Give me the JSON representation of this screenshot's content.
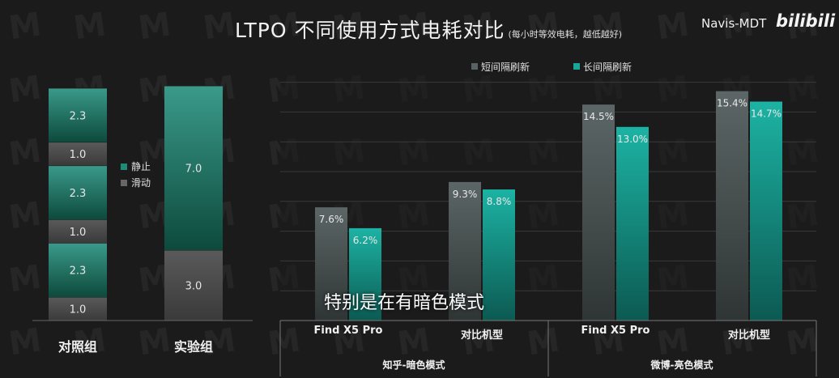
{
  "title": "LTPO 不同使用方式电耗对比",
  "title_note": "(每小时等效电耗，越低越好)",
  "brand": "Navis-MDT",
  "logo_text": "bilibili",
  "subtitle_overlay": "特别是在有暗色模式",
  "colors": {
    "background": "#1b1b1b",
    "static": "#1f8a78",
    "scroll": "#4a4a4a",
    "short_refresh": "#535c5c",
    "long_refresh": "#18a89a"
  },
  "chart_data": [
    {
      "type": "bar",
      "stacked": true,
      "categories": [
        "对照组",
        "实验组"
      ],
      "legend": [
        "静止",
        "滑动"
      ],
      "legend_placement": "between bars",
      "stacks": [
        {
          "category": "对照组",
          "segments": [
            {
              "label": "滑动",
              "value": 1.0
            },
            {
              "label": "静止",
              "value": 2.3
            },
            {
              "label": "滑动",
              "value": 1.0
            },
            {
              "label": "静止",
              "value": 2.3
            },
            {
              "label": "滑动",
              "value": 1.0
            },
            {
              "label": "静止",
              "value": 2.3
            }
          ]
        },
        {
          "category": "实验组",
          "segments": [
            {
              "label": "滑动",
              "value": 3.0
            },
            {
              "label": "静止",
              "value": 7.0
            }
          ]
        }
      ],
      "ylim": [
        0,
        10
      ],
      "grid": false
    },
    {
      "type": "bar",
      "groups": [
        {
          "name": "知乎-暗色模式",
          "categories": [
            "Find X5 Pro",
            "对比机型"
          ]
        },
        {
          "name": "微博-亮色模式",
          "categories": [
            "Find X5 Pro",
            "对比机型"
          ]
        }
      ],
      "series": [
        {
          "name": "短间隔刷新",
          "values": [
            7.6,
            9.3,
            14.5,
            15.4
          ]
        },
        {
          "name": "长间隔刷新",
          "values": [
            6.2,
            8.8,
            13.0,
            14.7
          ]
        }
      ],
      "value_format": "%",
      "legend_placement": "top",
      "ylim": [
        0,
        18
      ],
      "grid": true
    }
  ]
}
